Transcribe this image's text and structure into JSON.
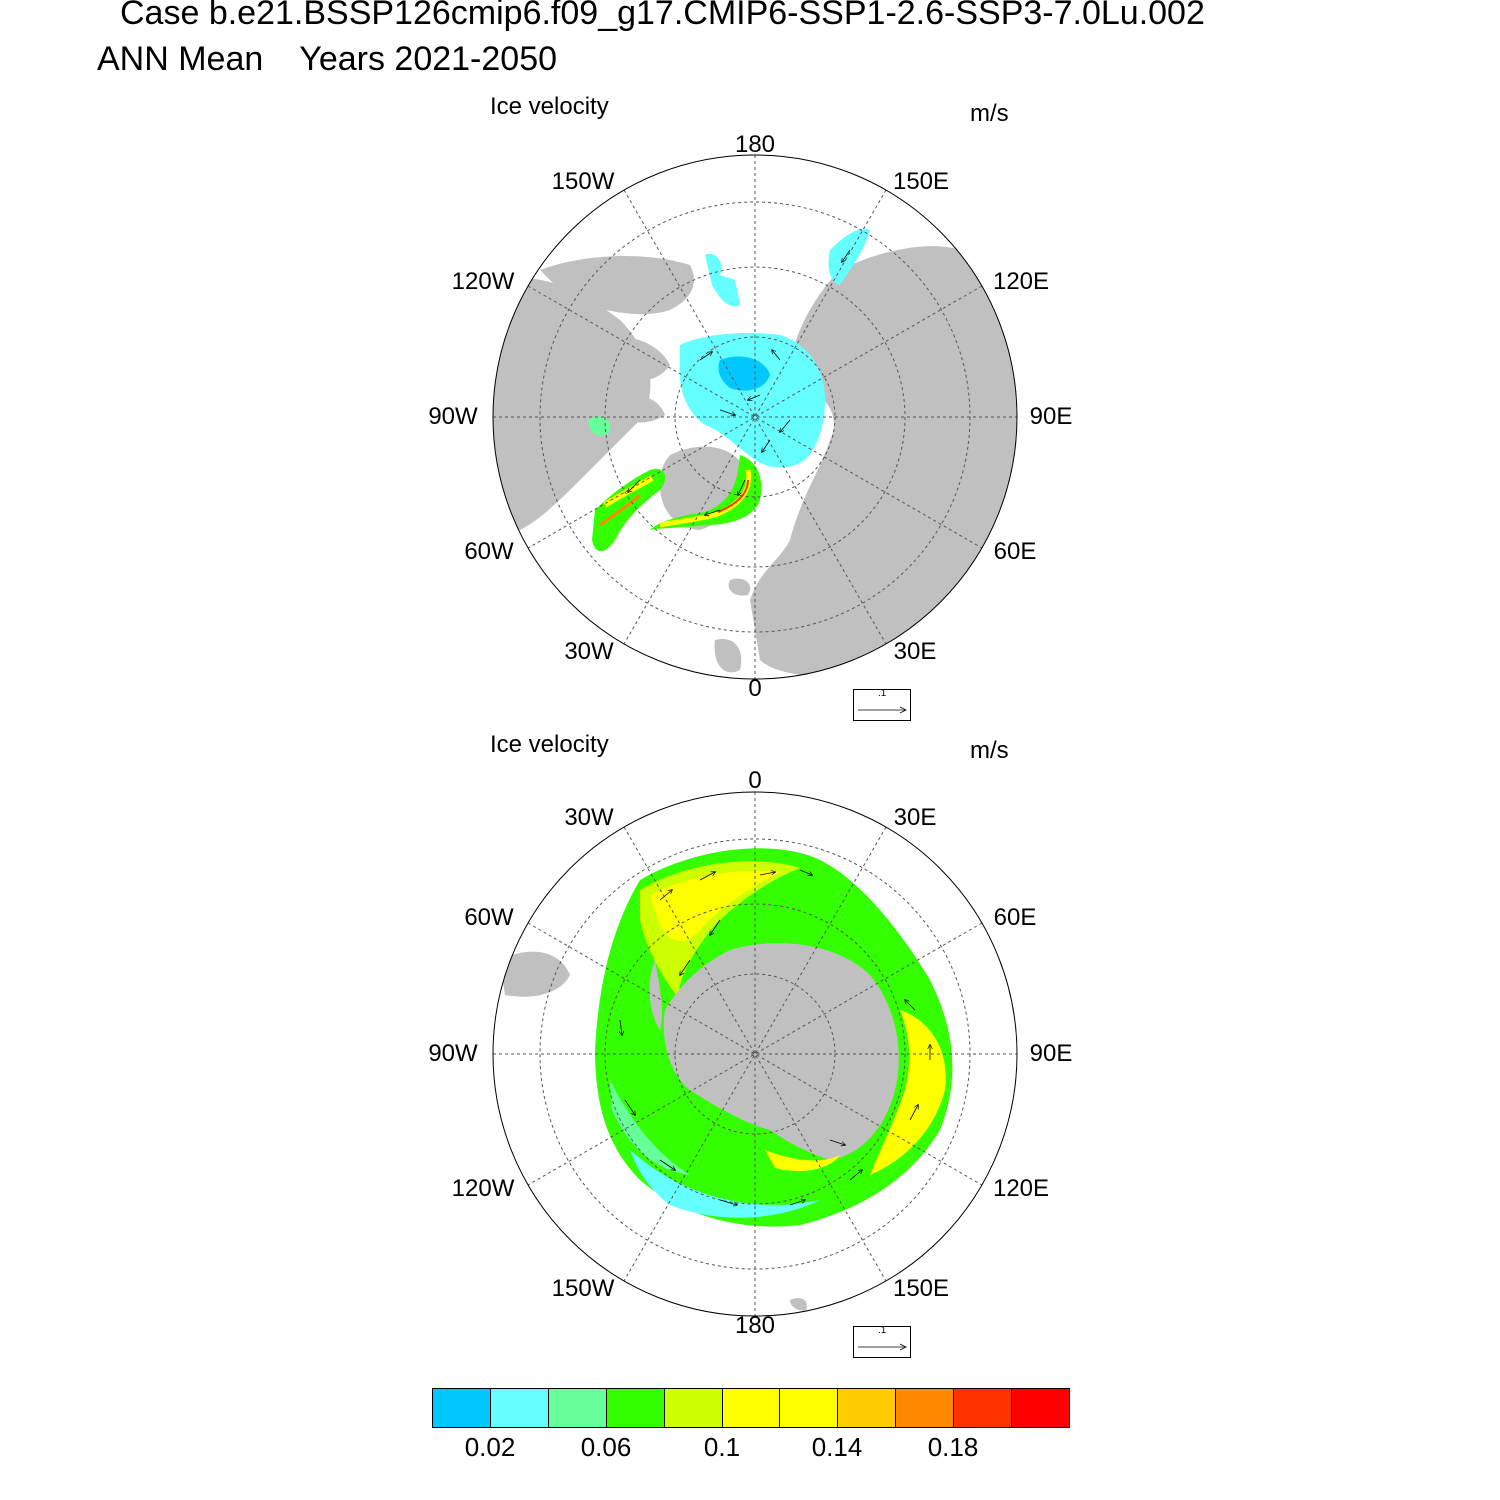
{
  "header": {
    "case_title": "Case b.e21.BSSP126cmip6.f09_g17.CMIP6-SSP1-2.6-SSP3-7.0Lu.002",
    "period_prefix": "ANN Mean",
    "period_years": "Years 2021-2050"
  },
  "panels": [
    {
      "hemisphere": "north",
      "title": "Ice velocity",
      "units": "m/s",
      "lon_labels": [
        "180",
        "150E",
        "120E",
        "90E",
        "60E",
        "30E",
        "0",
        "30W",
        "60W",
        "90W",
        "120W",
        "150W"
      ],
      "ref_vector_label": ".1"
    },
    {
      "hemisphere": "south",
      "title": "Ice velocity",
      "units": "m/s",
      "lon_labels": [
        "0",
        "30E",
        "60E",
        "90E",
        "120E",
        "150E",
        "180",
        "150W",
        "120W",
        "90W",
        "60W",
        "30W"
      ],
      "ref_vector_label": ".1"
    }
  ],
  "colorbar": {
    "colors": [
      "#00c8ff",
      "#66ffff",
      "#66ff99",
      "#33ff00",
      "#ccff00",
      "#ffff00",
      "#ffff00",
      "#ffcc00",
      "#ff8800",
      "#ff3300",
      "#ff0000"
    ],
    "tick_labels": [
      "0.02",
      "0.06",
      "0.1",
      "0.14",
      "0.18"
    ]
  },
  "colors": {
    "land": "#c0c0c0",
    "grid": "#555555"
  }
}
